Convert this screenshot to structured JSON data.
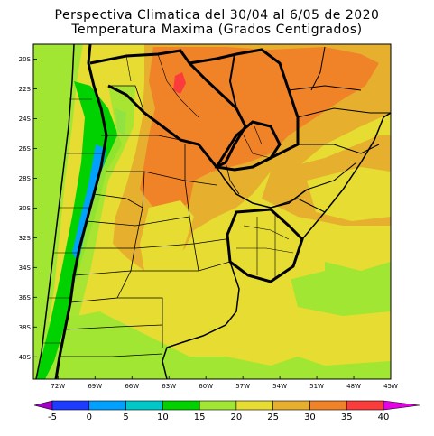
{
  "title": {
    "line1": "Perspectiva Climatica del 30/04 al 6/05 de 2020",
    "line2": "Temperatura Maxima (Grados Centigrados)"
  },
  "map": {
    "lat_labels": [
      "20S",
      "22S",
      "24S",
      "26S",
      "28S",
      "30S",
      "32S",
      "34S",
      "36S",
      "38S",
      "40S"
    ],
    "lon_labels": [
      "72W",
      "69W",
      "66W",
      "63W",
      "60W",
      "57W",
      "54W",
      "51W",
      "48W",
      "45W"
    ],
    "lat_range": [
      -41.5,
      -19
    ],
    "lon_range": [
      -74,
      -45
    ]
  },
  "legend": {
    "ticks": [
      "-5",
      "0",
      "5",
      "10",
      "15",
      "20",
      "25",
      "30",
      "35",
      "40"
    ],
    "colors": [
      "#a000c8",
      "#1e3cff",
      "#00a0ff",
      "#00c8c8",
      "#00d200",
      "#a0e632",
      "#e6dc32",
      "#e6af2d",
      "#f08228",
      "#fa3c3c",
      "#e600e6"
    ]
  },
  "colors": {
    "ocean": "#e6dc32",
    "yellow_25": "#e6dc32",
    "orange_30": "#e6af2d",
    "orange_35": "#f08228",
    "red_40": "#fa3c3c",
    "green_20": "#a0e632",
    "green_15": "#00d200",
    "cyan_10": "#00c8c8",
    "blue_5": "#00a0ff",
    "border": "#000000"
  }
}
